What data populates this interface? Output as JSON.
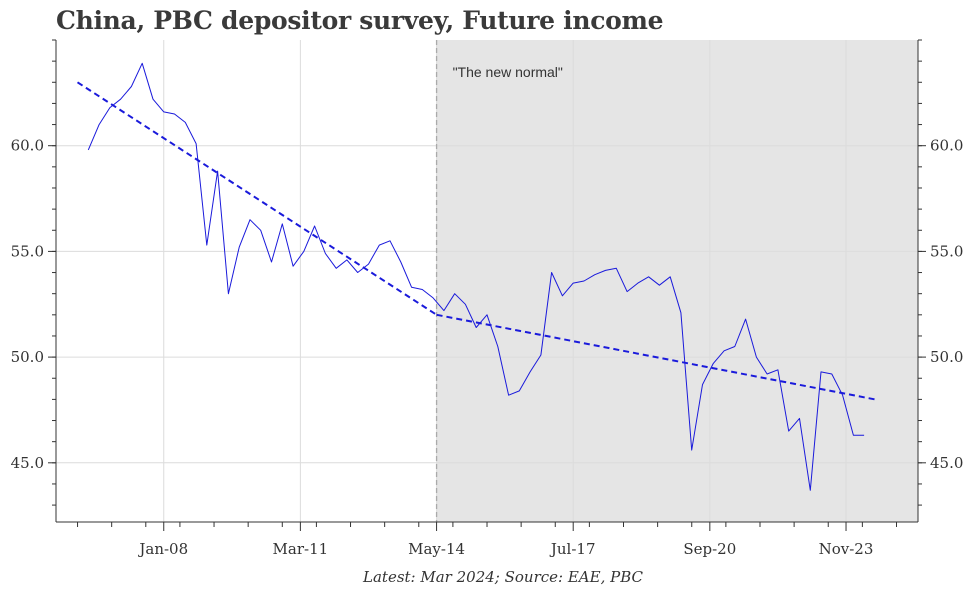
{
  "chart_data": {
    "type": "line",
    "title": "China, PBC depositor survey, Future income",
    "caption": "Latest: Mar 2024; Source: EAE, PBC",
    "annotation": "\"The new normal\"",
    "xlabel": "",
    "ylabel": "",
    "x_tick_labels": [
      "Jan-08",
      "Mar-11",
      "May-14",
      "Jul-17",
      "Sep-20",
      "Nov-23"
    ],
    "x_tick_values": [
      2008.0,
      2011.17,
      2014.33,
      2017.5,
      2020.67,
      2023.83
    ],
    "y_ticks": [
      45.0,
      50.0,
      55.0,
      60.0
    ],
    "y_tick_labels": [
      "45.0",
      "50.0",
      "55.0",
      "60.0"
    ],
    "xlim": [
      2005.5,
      2025.5
    ],
    "ylim": [
      42.2,
      65.0
    ],
    "shaded_region": {
      "start": 2014.33,
      "end": 2025.5,
      "color": "#e5e5e5"
    },
    "vline": {
      "x": 2014.33,
      "color": "#aaaaaa",
      "style": "dashed"
    },
    "grid": true,
    "series": [
      {
        "color": "#1a1adb",
        "style": "solid",
        "points": [
          [
            2006.25,
            59.8
          ],
          [
            2006.5,
            61.0
          ],
          [
            2006.75,
            61.8
          ],
          [
            2007.0,
            62.2
          ],
          [
            2007.25,
            62.8
          ],
          [
            2007.5,
            63.9
          ],
          [
            2007.75,
            62.2
          ],
          [
            2008.0,
            61.6
          ],
          [
            2008.25,
            61.5
          ],
          [
            2008.5,
            61.1
          ],
          [
            2008.75,
            60.1
          ],
          [
            2009.0,
            55.3
          ],
          [
            2009.25,
            58.8
          ],
          [
            2009.5,
            53.0
          ],
          [
            2009.75,
            55.2
          ],
          [
            2010.0,
            56.5
          ],
          [
            2010.25,
            56.0
          ],
          [
            2010.5,
            54.5
          ],
          [
            2010.75,
            56.3
          ],
          [
            2011.0,
            54.3
          ],
          [
            2011.25,
            55.0
          ],
          [
            2011.5,
            56.2
          ],
          [
            2011.75,
            54.9
          ],
          [
            2012.0,
            54.2
          ],
          [
            2012.25,
            54.6
          ],
          [
            2012.5,
            54.0
          ],
          [
            2012.75,
            54.4
          ],
          [
            2013.0,
            55.3
          ],
          [
            2013.25,
            55.5
          ],
          [
            2013.5,
            54.5
          ],
          [
            2013.75,
            53.3
          ],
          [
            2014.0,
            53.2
          ],
          [
            2014.25,
            52.8
          ],
          [
            2014.5,
            52.2
          ],
          [
            2014.75,
            53.0
          ],
          [
            2015.0,
            52.5
          ],
          [
            2015.25,
            51.4
          ],
          [
            2015.5,
            52.0
          ],
          [
            2015.75,
            50.5
          ],
          [
            2016.0,
            48.2
          ],
          [
            2016.25,
            48.4
          ],
          [
            2016.5,
            49.3
          ],
          [
            2016.75,
            50.1
          ],
          [
            2017.0,
            54.0
          ],
          [
            2017.25,
            52.9
          ],
          [
            2017.5,
            53.5
          ],
          [
            2017.75,
            53.6
          ],
          [
            2018.0,
            53.9
          ],
          [
            2018.25,
            54.1
          ],
          [
            2018.5,
            54.2
          ],
          [
            2018.75,
            53.1
          ],
          [
            2019.0,
            53.5
          ],
          [
            2019.25,
            53.8
          ],
          [
            2019.5,
            53.4
          ],
          [
            2019.75,
            53.8
          ],
          [
            2020.0,
            52.1
          ],
          [
            2020.25,
            45.6
          ],
          [
            2020.5,
            48.7
          ],
          [
            2020.75,
            49.7
          ],
          [
            2021.0,
            50.3
          ],
          [
            2021.25,
            50.5
          ],
          [
            2021.5,
            51.8
          ],
          [
            2021.75,
            50.0
          ],
          [
            2022.0,
            49.2
          ],
          [
            2022.25,
            49.4
          ],
          [
            2022.5,
            46.5
          ],
          [
            2022.75,
            47.1
          ],
          [
            2023.0,
            43.7
          ],
          [
            2023.25,
            49.3
          ],
          [
            2023.5,
            49.2
          ],
          [
            2023.75,
            48.2
          ],
          [
            2024.0,
            46.3
          ],
          [
            2024.25,
            46.3
          ]
        ]
      },
      {
        "color": "#1a1adb",
        "style": "dashed",
        "points": [
          [
            2006.0,
            63.0
          ],
          [
            2014.33,
            52.0
          ]
        ]
      },
      {
        "color": "#1a1adb",
        "style": "dashed",
        "points": [
          [
            2014.33,
            52.0
          ],
          [
            2024.5,
            48.0
          ]
        ]
      }
    ]
  }
}
